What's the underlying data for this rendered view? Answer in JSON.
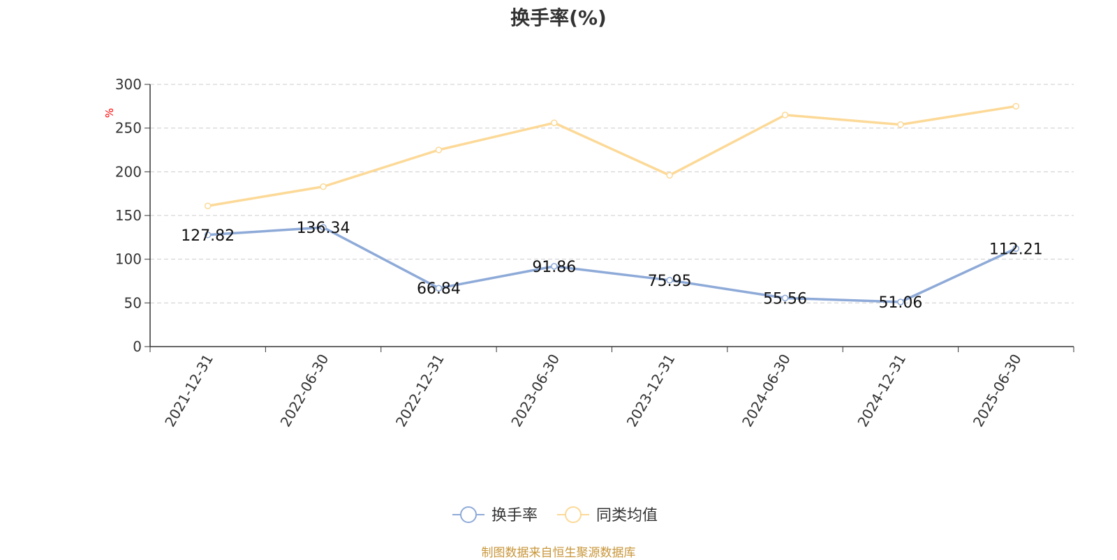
{
  "page": {
    "title": "换手率(%)",
    "source_note": "制图数据来自恒生聚源数据库"
  },
  "chart_data": {
    "type": "line",
    "title": "换手率(%)",
    "xlabel": "",
    "ylabel": "%",
    "categories": [
      "2021-12-31",
      "2022-06-30",
      "2022-12-31",
      "2023-06-30",
      "2023-12-31",
      "2024-06-30",
      "2024-12-31",
      "2025-06-30"
    ],
    "ylim": [
      0,
      300
    ],
    "yticks": [
      0,
      50,
      100,
      150,
      200,
      250,
      300
    ],
    "grid": true,
    "legend_position": "bottom",
    "series": [
      {
        "name": "换手率",
        "values": [
          127.82,
          136.34,
          66.84,
          91.86,
          75.95,
          55.56,
          51.06,
          112.21
        ],
        "color": "#8eaad8",
        "show_labels": true
      },
      {
        "name": "同类均值",
        "values": [
          161,
          183,
          225,
          256,
          196,
          265,
          254,
          275
        ],
        "color": "#fcd997",
        "show_labels": false
      }
    ],
    "colors": {
      "axis": "#333333",
      "grid": "#cccccc",
      "ylabel": "#ff0000",
      "source": "#c8963a"
    }
  }
}
